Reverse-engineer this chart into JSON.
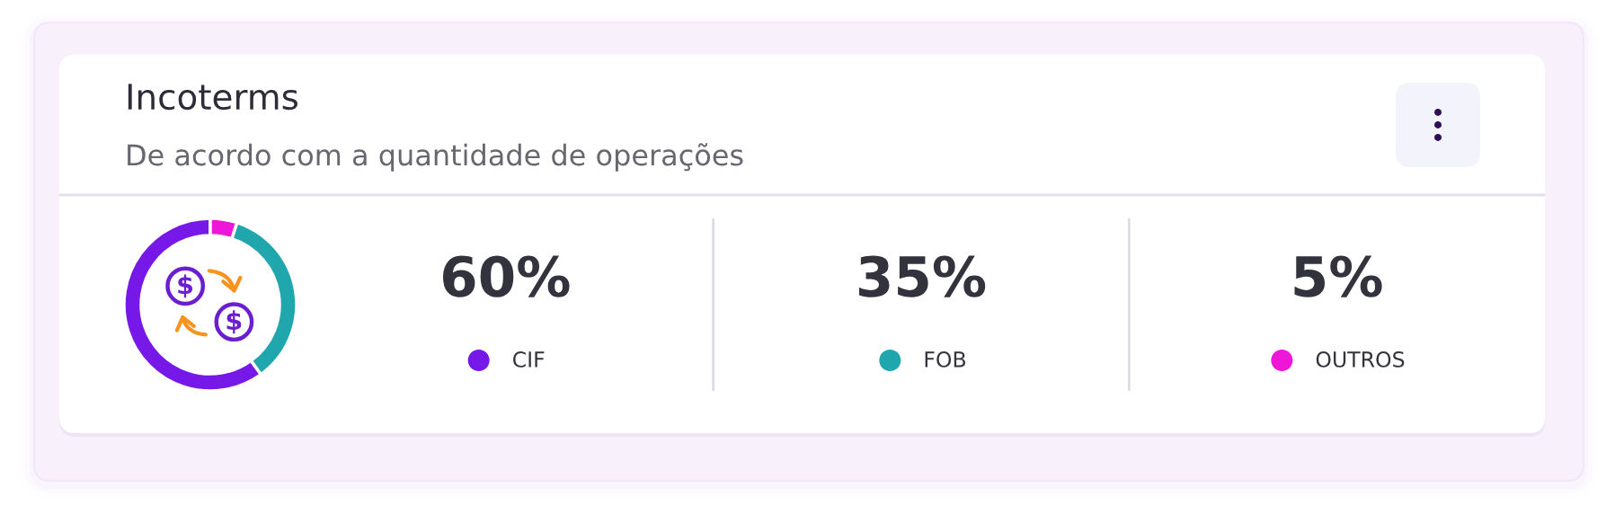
{
  "chart_data": {
    "type": "donut",
    "title": "Incoterms",
    "subtitle": "De acordo com a quantidade de operações",
    "categories": [
      "CIF",
      "FOB",
      "OUTROS"
    ],
    "values": [
      60,
      35,
      5
    ],
    "colors": [
      "#7619e8",
      "#20a7ae",
      "#ee17d9"
    ],
    "value_labels": [
      "60%",
      "35%",
      "5%"
    ],
    "legend": "right"
  }
}
